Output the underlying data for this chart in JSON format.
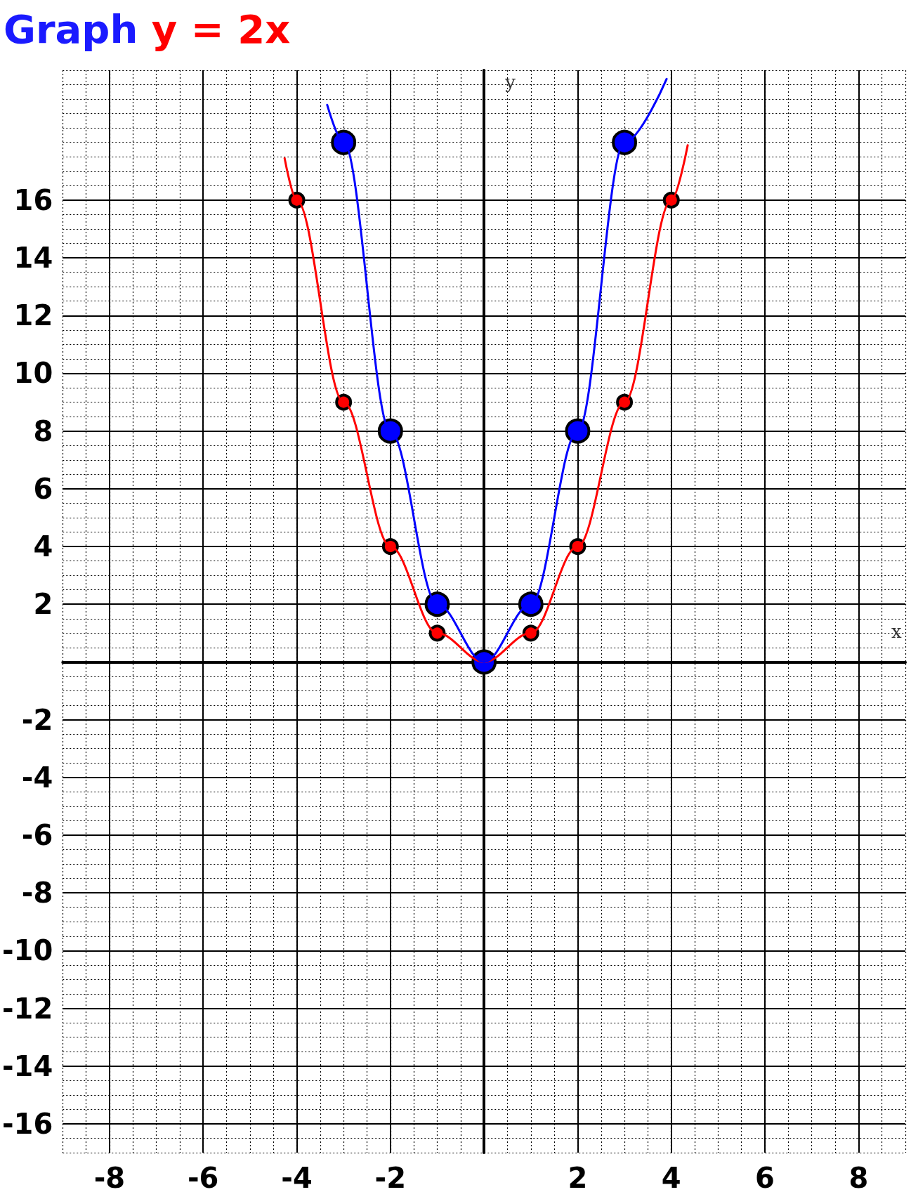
{
  "chart_data": {
    "type": "line",
    "title": "Graph y = 2x",
    "xlabel": "x",
    "ylabel": "y",
    "xlim": [
      -9,
      9
    ],
    "ylim": [
      -17,
      20.5
    ],
    "xticks": [
      -8,
      -6,
      -4,
      -2,
      2,
      4,
      6,
      8
    ],
    "yticks": [
      -16,
      -14,
      -12,
      -10,
      -8,
      -6,
      -4,
      -2,
      2,
      4,
      6,
      8,
      10,
      12,
      14,
      16
    ],
    "grid": true,
    "marker": "circle",
    "line_style": "solid",
    "series": [
      {
        "marker": "none",
        "color": "#ff0000",
        "x": [
          -4.26,
          -4,
          -3,
          -2,
          -1,
          0,
          1,
          2,
          3,
          4,
          4.35
        ],
        "values": [
          17.45,
          16,
          9,
          4,
          1,
          0,
          1,
          4,
          9,
          16,
          17.9
        ]
      },
      {
        "marker": "none",
        "color": "#0000ff",
        "x": [
          -3.35,
          -3,
          -2,
          -1,
          0,
          1,
          2,
          3,
          3.9
        ],
        "values": [
          19.3,
          18,
          8,
          2,
          0,
          2,
          8,
          18,
          20.2
        ]
      },
      {
        "type": "scatter",
        "color": "#ff0000",
        "x": [
          -4,
          -3,
          -2,
          -1,
          0,
          1,
          2,
          3,
          4
        ],
        "values": [
          16,
          9,
          4,
          1,
          null,
          1,
          4,
          9,
          16
        ]
      },
      {
        "type": "scatter",
        "color": "#0000ff",
        "x": [
          -3,
          -2,
          -1,
          0,
          1,
          2,
          3
        ],
        "values": [
          18,
          8,
          2,
          0,
          2,
          8,
          18
        ]
      }
    ]
  }
}
